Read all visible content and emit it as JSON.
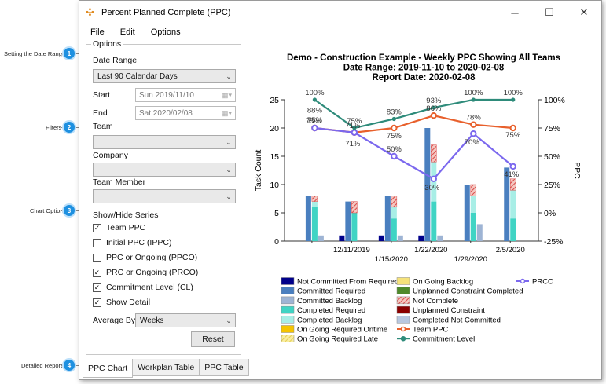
{
  "window": {
    "title": "Percent Planned Complete (PPC)"
  },
  "window_buttons": {
    "minimize": "─",
    "maximize": "☐",
    "close": "✕"
  },
  "menu": [
    "File",
    "Edit",
    "Options"
  ],
  "callouts": [
    {
      "num": "1",
      "text": "Setting the Date Range"
    },
    {
      "num": "2",
      "text": "Filters"
    },
    {
      "num": "3",
      "text": "Chart Options"
    },
    {
      "num": "4",
      "text": "Detailed Reports"
    }
  ],
  "options": {
    "group_label": "Options",
    "date_range_label": "Date Range",
    "date_range_value": "Last 90 Calendar Days",
    "start_label": "Start",
    "start_value": "Sun  2019/11/10",
    "end_label": "End",
    "end_value": "Sat  2020/02/08",
    "team_label": "Team",
    "company_label": "Company",
    "team_member_label": "Team Member",
    "show_hide_label": "Show/Hide Series",
    "series_toggles": [
      {
        "label": "Team PPC",
        "checked": true
      },
      {
        "label": "Initial PPC (IPPC)",
        "checked": false
      },
      {
        "label": "PPC or Ongoing (PPCO)",
        "checked": false
      },
      {
        "label": "PRC or Ongoing (PRCO)",
        "checked": true
      },
      {
        "label": "Commitment Level (CL)",
        "checked": true
      },
      {
        "label": "Show Detail",
        "checked": true
      }
    ],
    "average_by_label": "Average By",
    "average_by_value": "Weeks",
    "reset_label": "Reset"
  },
  "tabs": [
    "PPC Chart",
    "Workplan Table",
    "PPC Table"
  ],
  "chart_data": {
    "type": "bar",
    "title_lines": [
      "Demo - Construction Example - Weekly PPC Showing All Teams",
      "Date Range: 2019-11-10 to 2020-02-08",
      "Report Date: 2020-02-08"
    ],
    "ylabel": "Task Count",
    "y2label": "PPC",
    "ylim": [
      0,
      25
    ],
    "yticks": [
      "0",
      "5",
      "10",
      "15",
      "20",
      "25"
    ],
    "y2lim": [
      -25,
      100
    ],
    "y2ticks": [
      "-25%",
      "0%",
      "25%",
      "50%",
      "75%",
      "100%"
    ],
    "x_labels_upper": [
      "12/11/2019",
      "1/22/2020",
      "2/5/2020"
    ],
    "x_labels_lower": [
      "1/15/2020",
      "1/29/2020"
    ],
    "groups": [
      {
        "committed_required": 8,
        "completed_required": 6,
        "completed_backlog": 1,
        "not_complete": 1,
        "committed_backlog": 1,
        "not_committed_from_required": 0
      },
      {
        "committed_required": 7,
        "completed_required": 5,
        "completed_backlog": 0,
        "not_complete": 2,
        "committed_backlog": 0,
        "not_committed_from_required": 1
      },
      {
        "committed_required": 8,
        "completed_required": 4,
        "completed_backlog": 2,
        "not_complete": 2,
        "committed_backlog": 1,
        "not_committed_from_required": 1
      },
      {
        "committed_required": 20,
        "completed_required": 7,
        "completed_backlog": 7,
        "not_complete": 3,
        "committed_backlog": 1,
        "not_committed_from_required": 1
      },
      {
        "committed_required": 10,
        "completed_required": 5,
        "completed_backlog": 3,
        "not_complete": 2,
        "committed_backlog": 3,
        "not_committed_from_required": 0
      },
      {
        "committed_required": 13,
        "completed_required": 4,
        "completed_backlog": 5,
        "not_complete": 2,
        "committed_backlog": 0,
        "not_committed_from_required": 0
      }
    ],
    "series": [
      {
        "name": "Team PPC",
        "values": [
          75,
          71,
          75,
          86,
          78,
          75
        ],
        "labels": [
          "75%",
          "71%",
          "75%",
          "86%",
          "78%",
          "75%"
        ],
        "color": "#e8602c"
      },
      {
        "name": "PRCO",
        "values": [
          75,
          71,
          50,
          30,
          70,
          41
        ],
        "labels": [
          "75%",
          "71%",
          "50%",
          "30%",
          "70%",
          "41%"
        ],
        "color": "#7b68ee"
      },
      {
        "name": "Commitment Level",
        "values": [
          100,
          75,
          83,
          93,
          100,
          100
        ],
        "labels": [
          "100%",
          "75%",
          "83%",
          "93%",
          "100%",
          "100%"
        ],
        "color": "#2e8b7a"
      }
    ],
    "extra_point_labels": [
      "88%"
    ],
    "legend": [
      {
        "name": "Not Committed From Required",
        "color": "#00008b",
        "style": "solid"
      },
      {
        "name": "On Going Backlog",
        "color": "#f5e27a",
        "style": "solid"
      },
      {
        "name": "PRCO",
        "color": "#7b68ee",
        "style": "line"
      },
      {
        "name": "Committed Required",
        "color": "#4a7fbf",
        "style": "solid"
      },
      {
        "name": "Unplanned Constraint Completed",
        "color": "#4f8a2b",
        "style": "solid"
      },
      {
        "name": "Committed Backlog",
        "color": "#9eb4d4",
        "style": "solid"
      },
      {
        "name": "Not Complete",
        "color": "#d94a4a",
        "style": "hatch"
      },
      {
        "name": "Completed Required",
        "color": "#40d4c4",
        "style": "solid"
      },
      {
        "name": "Unplanned Constraint",
        "color": "#8b0000",
        "style": "solid"
      },
      {
        "name": "Completed Backlog",
        "color": "#a8eee6",
        "style": "solid"
      },
      {
        "name": "Completed Not Committed",
        "color": "#b8c8e0",
        "style": "solid"
      },
      {
        "name": "On Going Required Ontime",
        "color": "#f5c400",
        "style": "solid"
      },
      {
        "name": "Team PPC",
        "color": "#e8602c",
        "style": "line"
      },
      {
        "name": "On Going Required Late",
        "color": "#f5e07a",
        "style": "hatchy"
      },
      {
        "name": "Commitment Level",
        "color": "#2e8b7a",
        "style": "line"
      }
    ]
  }
}
